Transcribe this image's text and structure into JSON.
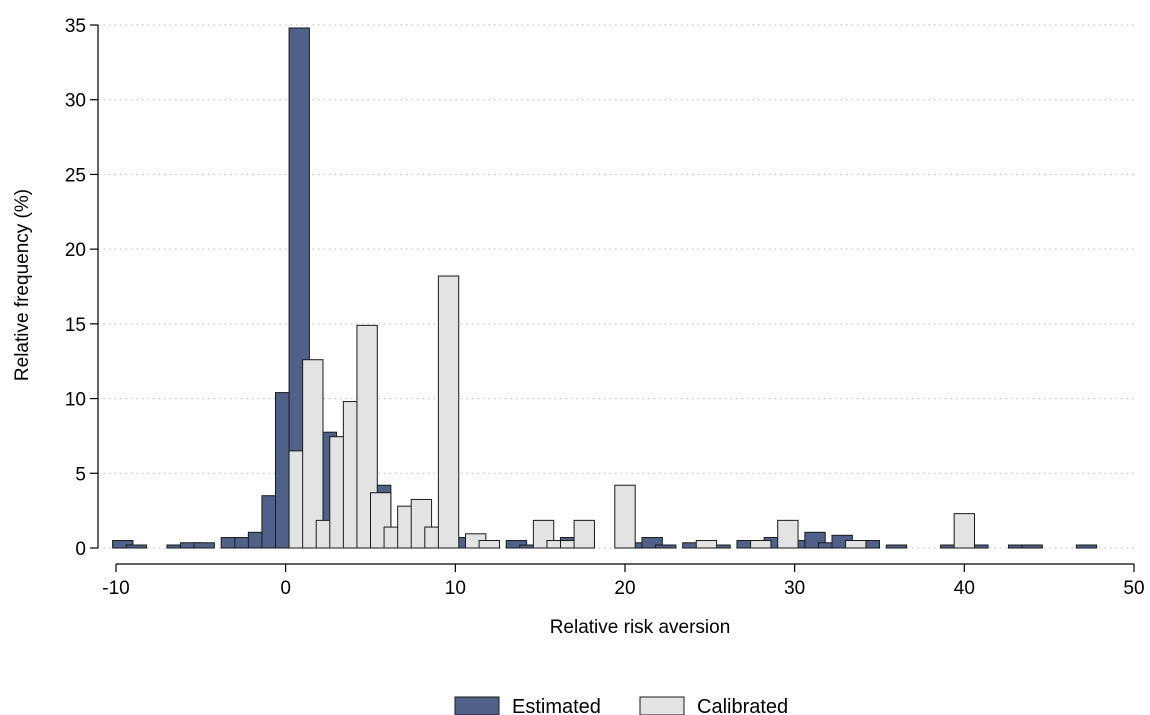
{
  "chart_data": {
    "type": "bar",
    "title": "",
    "xlabel": "Relative risk aversion",
    "ylabel": "Relative frequency (%)",
    "xlim": [
      -10,
      50
    ],
    "ylim": [
      0,
      35
    ],
    "x_ticks": [
      "-10",
      "0",
      "10",
      "20",
      "30",
      "40",
      "50"
    ],
    "y_ticks": [
      "0",
      "5",
      "10",
      "15",
      "20",
      "25",
      "30",
      "35"
    ],
    "grid": "horizontal dotted",
    "legend_position": "bottom",
    "colors": {
      "Estimated": "#4f6189",
      "Calibrated": "#e3e3e3"
    },
    "series": [
      {
        "name": "Estimated",
        "points": [
          {
            "x": -9.6,
            "y": 0.5
          },
          {
            "x": -8.8,
            "y": 0.2
          },
          {
            "x": -6.4,
            "y": 0.2
          },
          {
            "x": -5.6,
            "y": 0.35
          },
          {
            "x": -4.8,
            "y": 0.35
          },
          {
            "x": -3.2,
            "y": 0.7
          },
          {
            "x": -2.4,
            "y": 0.7
          },
          {
            "x": -1.6,
            "y": 1.05
          },
          {
            "x": -0.8,
            "y": 3.5
          },
          {
            "x": 0.0,
            "y": 10.4
          },
          {
            "x": 0.8,
            "y": 34.8
          },
          {
            "x": 2.4,
            "y": 7.75
          },
          {
            "x": 4.0,
            "y": 2.4
          },
          {
            "x": 4.8,
            "y": 2.0
          },
          {
            "x": 5.6,
            "y": 4.2
          },
          {
            "x": 7.2,
            "y": 1.0
          },
          {
            "x": 8.0,
            "y": 0.7
          },
          {
            "x": 10.4,
            "y": 0.7
          },
          {
            "x": 11.2,
            "y": 0.2
          },
          {
            "x": 13.6,
            "y": 0.5
          },
          {
            "x": 14.4,
            "y": 0.2
          },
          {
            "x": 16.0,
            "y": 0.35
          },
          {
            "x": 16.8,
            "y": 0.7
          },
          {
            "x": 17.6,
            "y": 0.5
          },
          {
            "x": 20.8,
            "y": 0.35
          },
          {
            "x": 21.6,
            "y": 0.7
          },
          {
            "x": 22.4,
            "y": 0.2
          },
          {
            "x": 24.0,
            "y": 0.35
          },
          {
            "x": 25.6,
            "y": 0.2
          },
          {
            "x": 27.2,
            "y": 0.5
          },
          {
            "x": 28.8,
            "y": 0.7
          },
          {
            "x": 30.4,
            "y": 0.5
          },
          {
            "x": 31.2,
            "y": 1.05
          },
          {
            "x": 32.0,
            "y": 0.35
          },
          {
            "x": 32.8,
            "y": 0.85
          },
          {
            "x": 34.4,
            "y": 0.5
          },
          {
            "x": 36.0,
            "y": 0.2
          },
          {
            "x": 39.2,
            "y": 0.2
          },
          {
            "x": 40.8,
            "y": 0.2
          },
          {
            "x": 43.2,
            "y": 0.2
          },
          {
            "x": 44.0,
            "y": 0.2
          },
          {
            "x": 47.2,
            "y": 0.2
          }
        ]
      },
      {
        "name": "Calibrated",
        "points": [
          {
            "x": 0.8,
            "y": 6.5
          },
          {
            "x": 1.6,
            "y": 12.6
          },
          {
            "x": 2.4,
            "y": 1.85
          },
          {
            "x": 3.2,
            "y": 7.45
          },
          {
            "x": 4.0,
            "y": 9.8
          },
          {
            "x": 4.8,
            "y": 14.9
          },
          {
            "x": 5.6,
            "y": 3.7
          },
          {
            "x": 6.4,
            "y": 1.4
          },
          {
            "x": 7.2,
            "y": 2.8
          },
          {
            "x": 8.0,
            "y": 3.25
          },
          {
            "x": 8.8,
            "y": 1.4
          },
          {
            "x": 9.6,
            "y": 18.2
          },
          {
            "x": 11.2,
            "y": 0.95
          },
          {
            "x": 12.0,
            "y": 0.5
          },
          {
            "x": 15.2,
            "y": 1.85
          },
          {
            "x": 16.0,
            "y": 0.5
          },
          {
            "x": 16.8,
            "y": 0.5
          },
          {
            "x": 17.6,
            "y": 1.85
          },
          {
            "x": 20.0,
            "y": 4.2
          },
          {
            "x": 24.8,
            "y": 0.5
          },
          {
            "x": 28.0,
            "y": 0.5
          },
          {
            "x": 29.6,
            "y": 1.85
          },
          {
            "x": 33.6,
            "y": 0.5
          },
          {
            "x": 40.0,
            "y": 2.3
          }
        ]
      }
    ]
  }
}
